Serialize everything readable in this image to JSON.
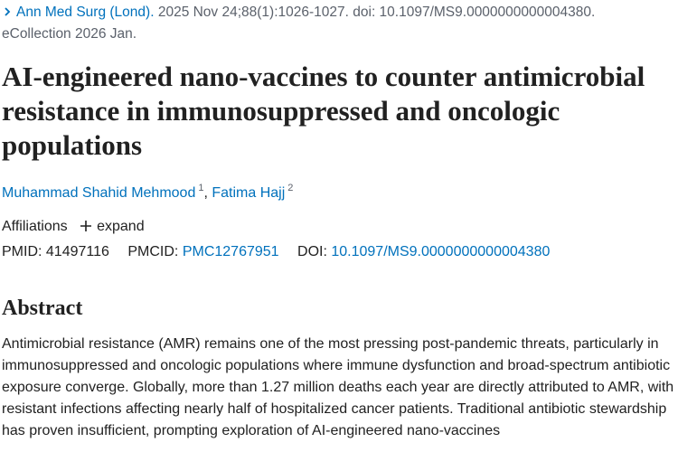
{
  "citation": {
    "journal": "Ann Med Surg (Lond).",
    "details": "2025 Nov 24;88(1):1026-1027. doi: 10.1097/MS9.0000000000004380.",
    "ecollection": "eCollection 2026 Jan."
  },
  "title": "AI-engineered nano-vaccines to counter antimicrobial resistance in immunosuppressed and oncologic populations",
  "authors": [
    {
      "name": "Muhammad Shahid Mehmood",
      "affiliation": "1"
    },
    {
      "name": "Fatima Hajj",
      "affiliation": "2"
    }
  ],
  "author_separator": ",",
  "affiliations": {
    "label": "Affiliations",
    "expand": "expand"
  },
  "identifiers": {
    "pmid_label": "PMID:",
    "pmid": "41497116",
    "pmcid_label": "PMCID:",
    "pmcid": "PMC12767951",
    "doi_label": "DOI:",
    "doi": "10.1097/MS9.0000000000004380"
  },
  "abstract": {
    "heading": "Abstract",
    "text": "Antimicrobial resistance (AMR) remains one of the most pressing post-pandemic threats, particularly in immunosuppressed and oncologic populations where immune dysfunction and broad-spectrum antibiotic exposure converge. Globally, more than 1.27 million deaths each year are directly attributed to AMR, with resistant infections affecting nearly half of hospitalized cancer patients. Traditional antibiotic stewardship has proven insufficient, prompting exploration of AI-engineered nano-vaccines"
  }
}
